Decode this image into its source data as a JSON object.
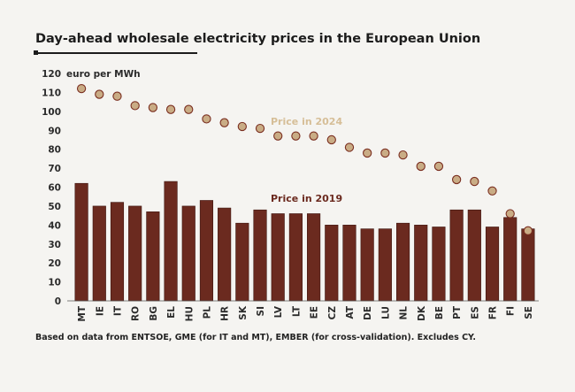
{
  "title": "Day-ahead wholesale electricity prices in the European Union",
  "footnote": "Based on data from ENTSOE, GME (for IT and MT), EMBER (for cross-validation). Excludes CY.",
  "colors": {
    "bar": "#6b2a1f",
    "bar_edge": "#3e1610",
    "dot_fill": "#c9ac85",
    "dot_edge": "#7a2e20",
    "label_2024": "#d6be97",
    "label_2019": "#6b2a1f",
    "axis_text": "#2a2a2a"
  },
  "chart_data": {
    "type": "bar",
    "title": "Day-ahead wholesale electricity prices in the European Union",
    "ylabel": "euro per MWh",
    "xlabel": "",
    "ylim": [
      0,
      120
    ],
    "yticks": [
      0,
      10,
      20,
      30,
      40,
      50,
      60,
      70,
      80,
      90,
      100,
      110,
      120
    ],
    "categories": [
      "MT",
      "IE",
      "IT",
      "RO",
      "BG",
      "EL",
      "HU",
      "PL",
      "HR",
      "SK",
      "SI",
      "LV",
      "LT",
      "EE",
      "CZ",
      "AT",
      "DE",
      "LU",
      "NL",
      "DK",
      "BE",
      "PT",
      "ES",
      "FR",
      "FI",
      "SE"
    ],
    "series": [
      {
        "name": "Price in 2019",
        "type": "bar",
        "values": [
          62,
          50,
          52,
          50,
          47,
          63,
          50,
          53,
          49,
          41,
          48,
          46,
          46,
          46,
          40,
          40,
          38,
          38,
          41,
          40,
          39,
          48,
          48,
          39,
          44,
          38
        ]
      },
      {
        "name": "Price in 2024",
        "type": "scatter",
        "values": [
          112,
          109,
          108,
          103,
          102,
          101,
          101,
          96,
          94,
          92,
          91,
          87,
          87,
          87,
          85,
          81,
          78,
          78,
          77,
          71,
          71,
          64,
          63,
          58,
          46,
          37
        ]
      }
    ],
    "annotations": [
      {
        "text": "Price in 2024",
        "series": "Price in 2024"
      },
      {
        "text": "Price in 2019",
        "series": "Price in 2019"
      }
    ]
  }
}
